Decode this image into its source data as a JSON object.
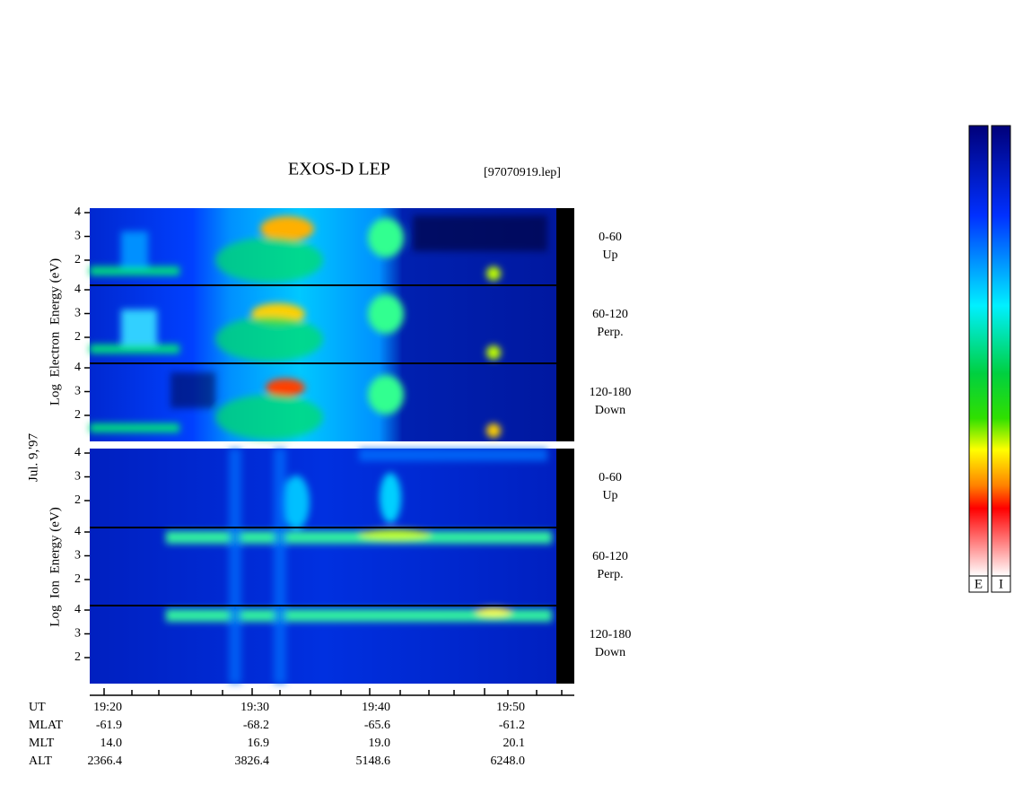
{
  "title": "EXOS-D LEP",
  "file": "[97070919.lep]",
  "date": "Jul. 9,'97",
  "electron_axis_label": "Log  Electron  Energy (eV)",
  "ion_axis_label": "Log  Ion  Energy (eV)",
  "energy_ticks": [
    2,
    3,
    4
  ],
  "panels": [
    {
      "range": "0-60",
      "direction": "Up"
    },
    {
      "range": "60-120",
      "direction": "Perp."
    },
    {
      "range": "120-180",
      "direction": "Down"
    },
    {
      "range": "0-60",
      "direction": "Up"
    },
    {
      "range": "60-120",
      "direction": "Perp."
    },
    {
      "range": "120-180",
      "direction": "Down"
    }
  ],
  "ephemeris": {
    "row_labels": [
      "UT",
      "MLAT",
      "MLT",
      "ALT"
    ],
    "columns": [
      [
        "19:20",
        "-61.9",
        "14.0",
        "2366.4"
      ],
      [
        "19:30",
        "-68.2",
        "16.9",
        "3826.4"
      ],
      [
        "19:40",
        "-65.6",
        "19.0",
        "5148.6"
      ],
      [
        "19:50",
        "-61.2",
        "20.1",
        "6248.0"
      ]
    ]
  },
  "colorbar_labels": [
    "E",
    "I"
  ]
}
